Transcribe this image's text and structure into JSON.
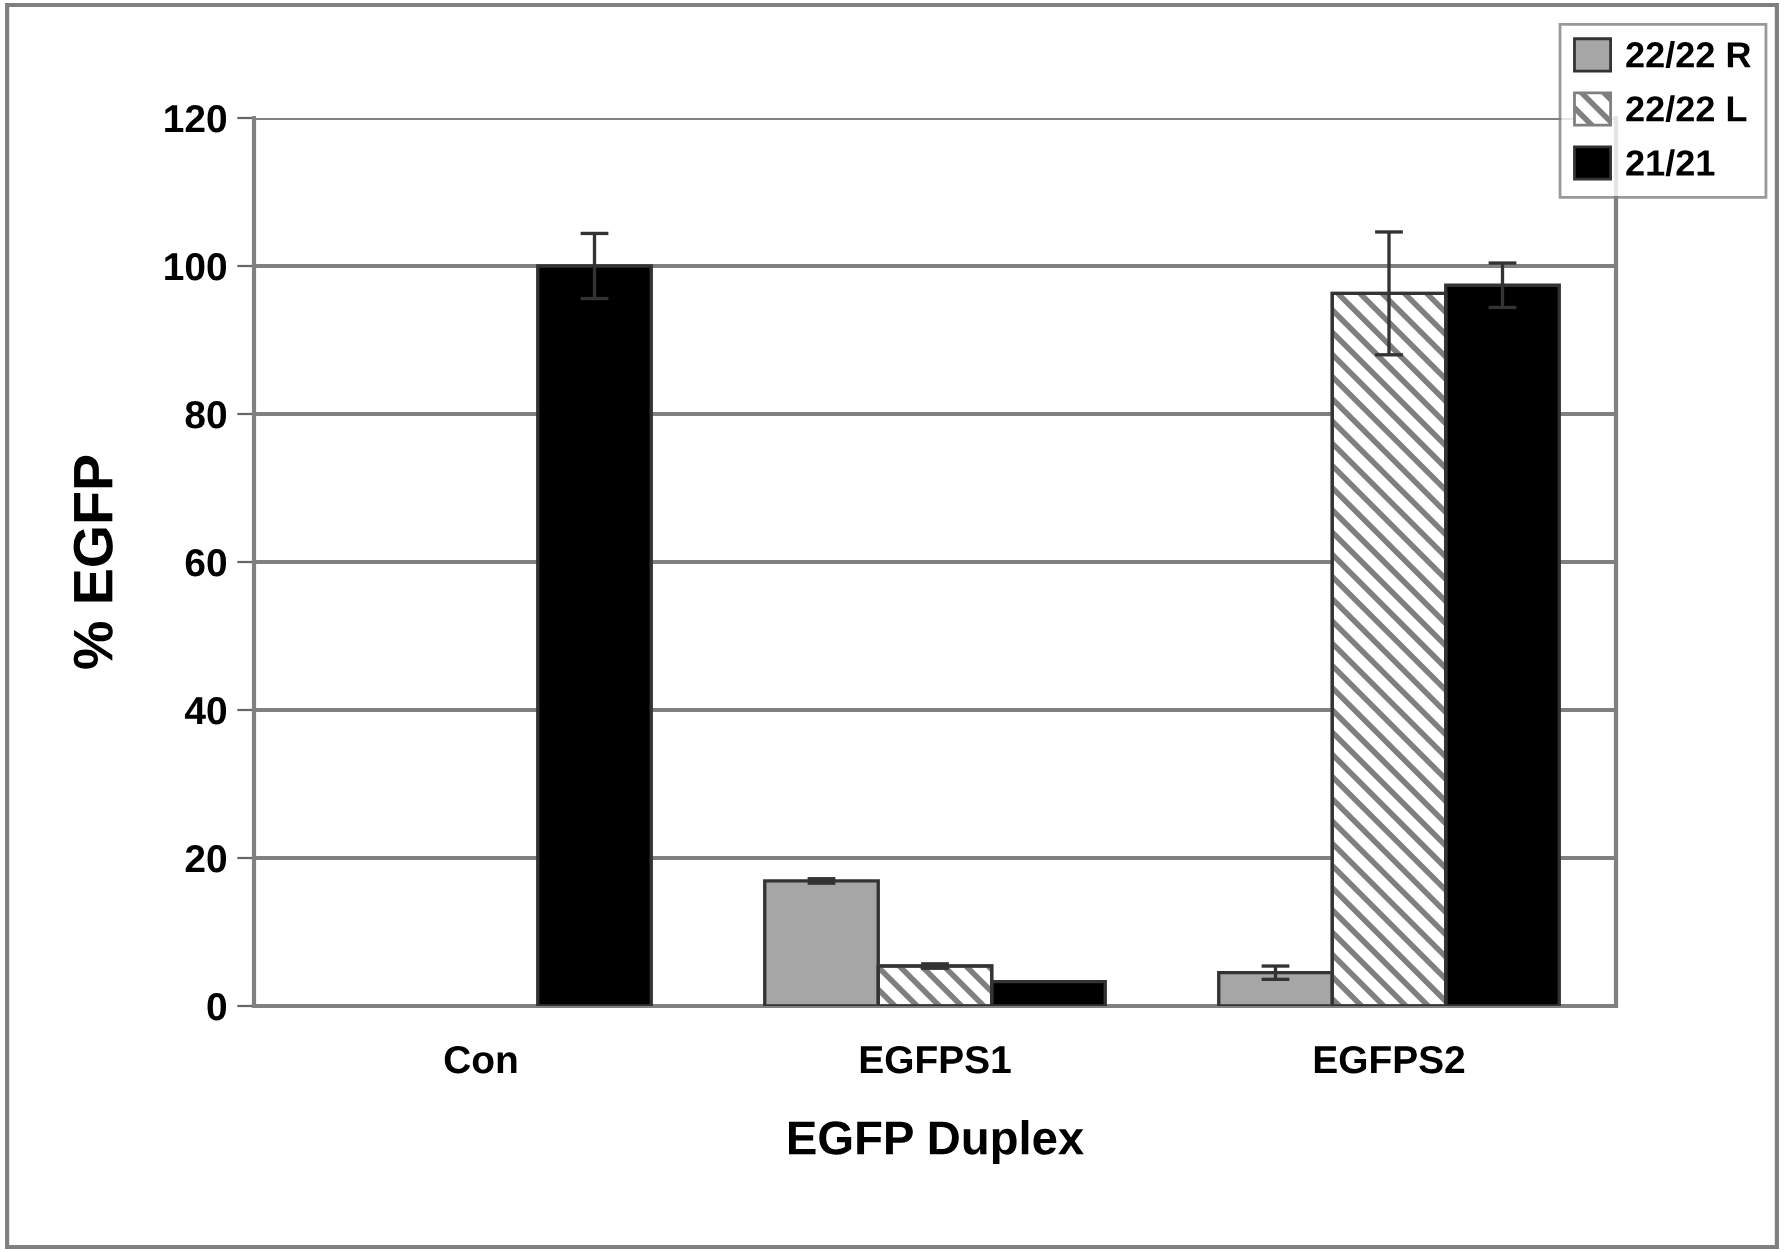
{
  "chart_data": {
    "type": "bar",
    "xlabel": "EGFP Duplex",
    "ylabel": "% EGFP",
    "categories": [
      "Con",
      "EGFPS1",
      "EGFPS2"
    ],
    "series": [
      {
        "name": "22/22 R",
        "color": "#a6a6a6",
        "values": [
          null,
          16.9,
          4.5
        ],
        "errors": [
          null,
          0.3,
          0.9
        ]
      },
      {
        "name": "22/22 L",
        "color": "#7f7f7f",
        "values": [
          null,
          5.4,
          96.3
        ],
        "errors": [
          null,
          0.3,
          8.3
        ]
      },
      {
        "name": "21/21",
        "color": "#000000",
        "values": [
          100,
          3.3,
          97.4
        ],
        "errors": [
          4.4,
          null,
          3.0
        ]
      }
    ],
    "ylim": [
      0,
      120
    ],
    "yticks": [
      0,
      20,
      40,
      60,
      80,
      100,
      120
    ],
    "grid": "y",
    "legend": "top right"
  }
}
